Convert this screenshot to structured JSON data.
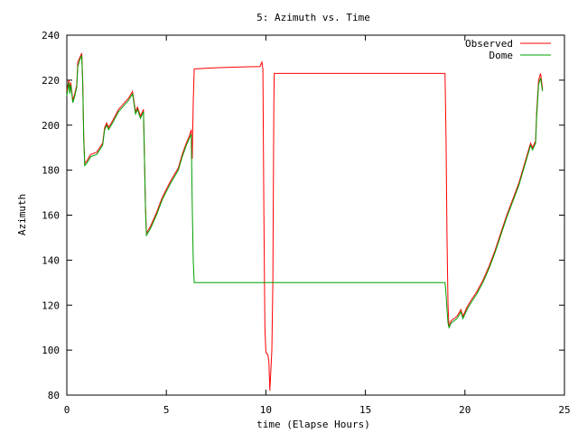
{
  "chart_data": {
    "type": "line",
    "title": "5: Azimuth vs. Time",
    "xlabel": "time (Elapse Hours)",
    "ylabel": "Azimuth",
    "xlim": [
      0,
      25
    ],
    "ylim": [
      80,
      240
    ],
    "x_ticks": [
      0,
      5,
      10,
      15,
      20,
      25
    ],
    "y_ticks": [
      80,
      100,
      120,
      140,
      160,
      180,
      200,
      220,
      240
    ],
    "grid": false,
    "legend": "top-right",
    "series": [
      {
        "name": "Observed",
        "color": "#ff0000",
        "points": [
          [
            0.0,
            215
          ],
          [
            0.1,
            220
          ],
          [
            0.15,
            216
          ],
          [
            0.2,
            219
          ],
          [
            0.3,
            211
          ],
          [
            0.4,
            214
          ],
          [
            0.5,
            218
          ],
          [
            0.55,
            228
          ],
          [
            0.65,
            230
          ],
          [
            0.75,
            232
          ],
          [
            0.8,
            219
          ],
          [
            0.85,
            195
          ],
          [
            0.9,
            183
          ],
          [
            1.0,
            184
          ],
          [
            1.2,
            187
          ],
          [
            1.5,
            188
          ],
          [
            1.8,
            192
          ],
          [
            1.9,
            199
          ],
          [
            2.0,
            201
          ],
          [
            2.1,
            199
          ],
          [
            2.3,
            202
          ],
          [
            2.6,
            207
          ],
          [
            2.9,
            210
          ],
          [
            3.1,
            212
          ],
          [
            3.3,
            215
          ],
          [
            3.45,
            206
          ],
          [
            3.55,
            208
          ],
          [
            3.7,
            204
          ],
          [
            3.85,
            207
          ],
          [
            3.9,
            186
          ],
          [
            3.95,
            164
          ],
          [
            4.0,
            152
          ],
          [
            4.2,
            155
          ],
          [
            4.5,
            161
          ],
          [
            4.8,
            168
          ],
          [
            5.2,
            175
          ],
          [
            5.6,
            181
          ],
          [
            5.8,
            187
          ],
          [
            6.0,
            192
          ],
          [
            6.15,
            195
          ],
          [
            6.25,
            198
          ],
          [
            6.3,
            185
          ],
          [
            6.35,
            210
          ],
          [
            6.4,
            225
          ],
          [
            7.5,
            225.5
          ],
          [
            8.5,
            225.8
          ],
          [
            9.4,
            226
          ],
          [
            9.7,
            226
          ],
          [
            9.8,
            228
          ],
          [
            9.85,
            225
          ],
          [
            9.9,
            160
          ],
          [
            9.95,
            110
          ],
          [
            10.0,
            99
          ],
          [
            10.1,
            98
          ],
          [
            10.15,
            95
          ],
          [
            10.2,
            82
          ],
          [
            10.3,
            100
          ],
          [
            10.35,
            130
          ],
          [
            10.4,
            210
          ],
          [
            10.42,
            223
          ],
          [
            12.0,
            223
          ],
          [
            14.0,
            223
          ],
          [
            16.0,
            223
          ],
          [
            18.0,
            223
          ],
          [
            19.0,
            223
          ],
          [
            19.05,
            195
          ],
          [
            19.1,
            150
          ],
          [
            19.15,
            120
          ],
          [
            19.2,
            110
          ],
          [
            19.3,
            113
          ],
          [
            19.6,
            115
          ],
          [
            19.8,
            118
          ],
          [
            19.9,
            115
          ],
          [
            20.1,
            119
          ],
          [
            20.3,
            122
          ],
          [
            20.6,
            126
          ],
          [
            20.9,
            131
          ],
          [
            21.2,
            137
          ],
          [
            21.5,
            144
          ],
          [
            21.8,
            152
          ],
          [
            22.1,
            160
          ],
          [
            22.4,
            167
          ],
          [
            22.7,
            174
          ],
          [
            23.0,
            183
          ],
          [
            23.2,
            189
          ],
          [
            23.3,
            192
          ],
          [
            23.4,
            190
          ],
          [
            23.55,
            193
          ],
          [
            23.6,
            205
          ],
          [
            23.7,
            220
          ],
          [
            23.8,
            223
          ],
          [
            23.9,
            216
          ]
        ]
      },
      {
        "name": "Dome",
        "color": "#00a000",
        "points": [
          [
            0.0,
            213
          ],
          [
            0.1,
            219
          ],
          [
            0.15,
            214
          ],
          [
            0.2,
            218
          ],
          [
            0.3,
            210
          ],
          [
            0.4,
            213
          ],
          [
            0.5,
            217
          ],
          [
            0.55,
            226
          ],
          [
            0.65,
            229
          ],
          [
            0.75,
            231
          ],
          [
            0.8,
            218
          ],
          [
            0.85,
            193
          ],
          [
            0.9,
            182
          ],
          [
            1.0,
            183
          ],
          [
            1.2,
            186
          ],
          [
            1.5,
            187
          ],
          [
            1.8,
            191
          ],
          [
            1.9,
            198
          ],
          [
            2.0,
            200
          ],
          [
            2.1,
            198
          ],
          [
            2.3,
            201
          ],
          [
            2.6,
            206
          ],
          [
            2.9,
            209
          ],
          [
            3.1,
            211
          ],
          [
            3.3,
            214
          ],
          [
            3.45,
            205
          ],
          [
            3.55,
            207
          ],
          [
            3.7,
            203
          ],
          [
            3.85,
            206
          ],
          [
            3.9,
            185
          ],
          [
            3.95,
            163
          ],
          [
            4.0,
            151
          ],
          [
            4.2,
            154
          ],
          [
            4.5,
            160
          ],
          [
            4.8,
            167
          ],
          [
            5.2,
            174
          ],
          [
            5.6,
            180
          ],
          [
            5.8,
            186
          ],
          [
            6.0,
            191
          ],
          [
            6.15,
            194
          ],
          [
            6.25,
            196
          ],
          [
            6.3,
            165
          ],
          [
            6.35,
            140
          ],
          [
            6.4,
            130
          ],
          [
            8.0,
            130
          ],
          [
            10.0,
            130
          ],
          [
            12.0,
            130
          ],
          [
            14.0,
            130
          ],
          [
            16.0,
            130
          ],
          [
            18.0,
            130
          ],
          [
            19.0,
            130
          ],
          [
            19.05,
            125
          ],
          [
            19.1,
            118
          ],
          [
            19.15,
            112
          ],
          [
            19.2,
            110
          ],
          [
            19.3,
            112
          ],
          [
            19.6,
            114
          ],
          [
            19.8,
            117
          ],
          [
            19.9,
            114
          ],
          [
            20.1,
            118
          ],
          [
            20.3,
            121
          ],
          [
            20.6,
            125
          ],
          [
            20.9,
            130
          ],
          [
            21.2,
            136
          ],
          [
            21.5,
            143
          ],
          [
            21.8,
            151
          ],
          [
            22.1,
            159
          ],
          [
            22.4,
            166
          ],
          [
            22.7,
            173
          ],
          [
            23.0,
            182
          ],
          [
            23.2,
            188
          ],
          [
            23.3,
            191
          ],
          [
            23.4,
            189
          ],
          [
            23.55,
            192
          ],
          [
            23.6,
            203
          ],
          [
            23.7,
            218
          ],
          [
            23.8,
            221
          ],
          [
            23.9,
            215
          ]
        ]
      }
    ]
  }
}
